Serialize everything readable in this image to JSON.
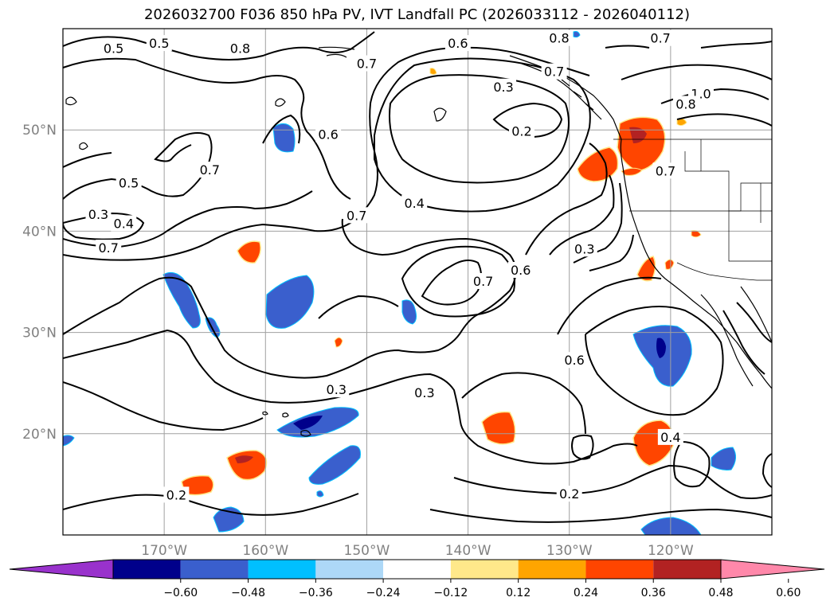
{
  "title": "2026032700 F036 850 hPa PV, IVT Landfall PC (2026033112 - 2026040112)",
  "map": {
    "lon_range": [
      -180,
      -110
    ],
    "lat_range": [
      10,
      60
    ],
    "lat_ticks": [
      {
        "value": 20,
        "label": "20°N"
      },
      {
        "value": 30,
        "label": "30°N"
      },
      {
        "value": 40,
        "label": "40°N"
      },
      {
        "value": 50,
        "label": "50°N"
      }
    ],
    "lon_ticks": [
      {
        "value": -170,
        "label": "170°W"
      },
      {
        "value": -160,
        "label": "160°W"
      },
      {
        "value": -150,
        "label": "150°W"
      },
      {
        "value": -140,
        "label": "140°W"
      },
      {
        "value": -130,
        "label": "130°W"
      },
      {
        "value": -120,
        "label": "120°W"
      }
    ],
    "grid": true
  },
  "contour_labels": [
    {
      "text": "0.5",
      "lon": -175,
      "lat": 58
    },
    {
      "text": "0.5",
      "lon": -170.5,
      "lat": 58.5
    },
    {
      "text": "0.8",
      "lon": -162.5,
      "lat": 58
    },
    {
      "text": "0.7",
      "lon": -150,
      "lat": 56.5
    },
    {
      "text": "0.6",
      "lon": -141,
      "lat": 58.5
    },
    {
      "text": "0.8",
      "lon": -131,
      "lat": 59
    },
    {
      "text": "0.7",
      "lon": -121,
      "lat": 59
    },
    {
      "text": "0.7",
      "lon": -131.5,
      "lat": 55.7
    },
    {
      "text": "0.3",
      "lon": -136.5,
      "lat": 54.2
    },
    {
      "text": "1.0",
      "lon": -117,
      "lat": 53.5
    },
    {
      "text": "0.8",
      "lon": -118.5,
      "lat": 52.5
    },
    {
      "text": "0.2",
      "lon": -134.7,
      "lat": 49.8
    },
    {
      "text": "0.6",
      "lon": -153.8,
      "lat": 49.5
    },
    {
      "text": "0.7",
      "lon": -165.5,
      "lat": 46
    },
    {
      "text": "0.5",
      "lon": -173.5,
      "lat": 44.7
    },
    {
      "text": "0.3",
      "lon": -176.5,
      "lat": 41.6
    },
    {
      "text": "0.4",
      "lon": -174,
      "lat": 40.7
    },
    {
      "text": "0.7",
      "lon": -175.5,
      "lat": 38.3
    },
    {
      "text": "0.7",
      "lon": -151,
      "lat": 41.5
    },
    {
      "text": "0.4",
      "lon": -145.3,
      "lat": 42.7
    },
    {
      "text": "0.7",
      "lon": -120.5,
      "lat": 45.9
    },
    {
      "text": "0.3",
      "lon": -128.5,
      "lat": 38.2
    },
    {
      "text": "0.7",
      "lon": -138.5,
      "lat": 35
    },
    {
      "text": "0.6",
      "lon": -134.8,
      "lat": 36.1
    },
    {
      "text": "0.3",
      "lon": -153,
      "lat": 24.3
    },
    {
      "text": "0.3",
      "lon": -144.3,
      "lat": 24
    },
    {
      "text": "0.6",
      "lon": -129.5,
      "lat": 27.2
    },
    {
      "text": "0.4",
      "lon": -120,
      "lat": 19.6
    },
    {
      "text": "0.2",
      "lon": -130,
      "lat": 14
    },
    {
      "text": "0.2",
      "lon": -168.8,
      "lat": 13.9
    }
  ],
  "colorbar": {
    "ticks": [
      "−0.60",
      "−0.48",
      "−0.36",
      "−0.24",
      "−0.12",
      "0.12",
      "0.24",
      "0.36",
      "0.48",
      "0.60"
    ],
    "colors": [
      "#9932cc",
      "#00008b",
      "#3a5fcd",
      "#00bfff",
      "#add8f7",
      "#ffffff",
      "#ffe88a",
      "#ffa500",
      "#ff4500",
      "#b22222",
      "#ff88aa"
    ]
  }
}
